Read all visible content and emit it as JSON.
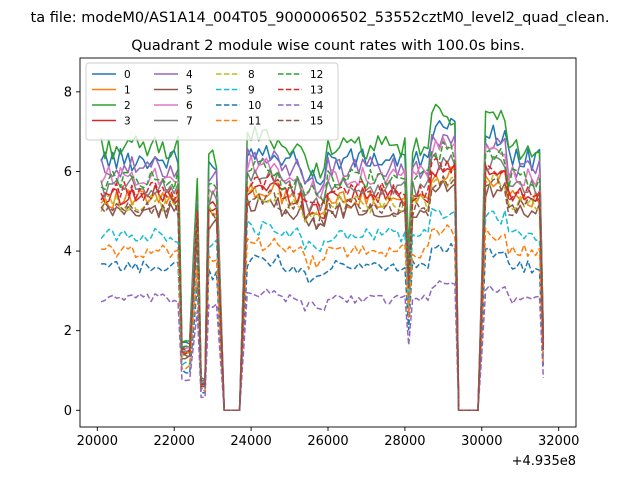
{
  "chart_data": {
    "type": "line",
    "suptitle": "ta file: modeM0/AS1A14_004T05_9000006502_53552cztM0_level2_quad_clean.",
    "title": "Quadrant 2 module wise count rates with 100.0s bins.",
    "xlabel": "",
    "ylabel": "",
    "x_offset_label": "+4.935e8",
    "xlim": [
      19550,
      32450
    ],
    "ylim": [
      -0.42,
      8.85
    ],
    "xticks": [
      20000,
      22000,
      24000,
      26000,
      28000,
      30000,
      32000
    ],
    "xtick_labels": [
      "20000",
      "22000",
      "24000",
      "26000",
      "28000",
      "30000",
      "32000"
    ],
    "yticks": [
      0,
      2,
      4,
      6,
      8
    ],
    "ytick_labels": [
      "0",
      "2",
      "4",
      "6",
      "8"
    ],
    "legend_position": "top-left",
    "x_range": [
      20100,
      31600
    ],
    "bin_seconds": 100,
    "segments": [
      {
        "start": 20100,
        "end": 22100,
        "level": 1.0
      },
      {
        "start": 22150,
        "end": 22450,
        "level": 0.27
      },
      {
        "start": 22550,
        "end": 22600,
        "level": 0.88
      },
      {
        "start": 22700,
        "end": 22800,
        "level": 0.12
      },
      {
        "start": 22900,
        "end": 23150,
        "level": 0.95
      },
      {
        "start": 23300,
        "end": 23750,
        "level": 0.0
      },
      {
        "start": 23900,
        "end": 28000,
        "level": 1.0
      },
      {
        "start": 28100,
        "end": 28100,
        "level": 0.58
      },
      {
        "start": 28200,
        "end": 29300,
        "level": 1.0
      },
      {
        "start": 29400,
        "end": 29950,
        "level": 0.0
      },
      {
        "start": 30100,
        "end": 31500,
        "level": 1.0
      },
      {
        "start": 31600,
        "end": 31600,
        "level": 0.3
      }
    ],
    "series": [
      {
        "name": "0",
        "base": 6.3,
        "color": "#1f77b4",
        "dash": "solid"
      },
      {
        "name": "1",
        "base": 5.3,
        "color": "#ff7f0e",
        "dash": "solid"
      },
      {
        "name": "2",
        "base": 6.6,
        "color": "#2ca02c",
        "dash": "solid"
      },
      {
        "name": "3",
        "base": 5.4,
        "color": "#d62728",
        "dash": "solid"
      },
      {
        "name": "4",
        "base": 6.1,
        "color": "#9467bd",
        "dash": "solid"
      },
      {
        "name": "5",
        "base": 5.0,
        "color": "#8c564b",
        "dash": "solid"
      },
      {
        "name": "6",
        "base": 5.9,
        "color": "#e377c2",
        "dash": "solid"
      },
      {
        "name": "7",
        "base": 5.6,
        "color": "#7f7f7f",
        "dash": "solid"
      },
      {
        "name": "8",
        "base": 5.2,
        "color": "#bcbd22",
        "dash": "dashed"
      },
      {
        "name": "9",
        "base": 4.4,
        "color": "#17becf",
        "dash": "dashed"
      },
      {
        "name": "10",
        "base": 3.6,
        "color": "#1f77b4",
        "dash": "dashed"
      },
      {
        "name": "11",
        "base": 4.0,
        "color": "#ff7f0e",
        "dash": "dashed"
      },
      {
        "name": "12",
        "base": 5.8,
        "color": "#2ca02c",
        "dash": "dashed"
      },
      {
        "name": "13",
        "base": 5.5,
        "color": "#d62728",
        "dash": "dashed"
      },
      {
        "name": "14",
        "base": 2.8,
        "color": "#9467bd",
        "dash": "dashed"
      },
      {
        "name": "15",
        "base": 5.1,
        "color": "#8c564b",
        "dash": "dashed"
      }
    ]
  }
}
